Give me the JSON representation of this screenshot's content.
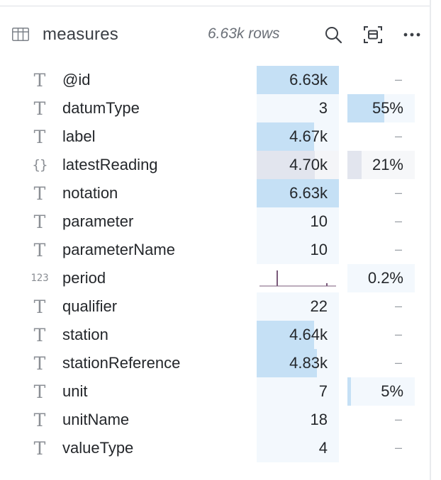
{
  "table": {
    "name": "measures",
    "row_count": "6.63k rows",
    "icons": {
      "table": "table-icon",
      "search": "search-icon",
      "focus": "expand-icon",
      "more": "more-icon"
    }
  },
  "colors": {
    "blue_fill": "#c5e0f5",
    "blue_bg": "#f3f8fd",
    "gray_fill": "#e2e5ee",
    "histogram": "#7a5a7a"
  },
  "columns": [
    {
      "name": "@id",
      "type": "T",
      "distinct": "6.63k",
      "distinct_fraction": 1.0,
      "null_pct": "",
      "null_fraction": 0
    },
    {
      "name": "datumType",
      "type": "T",
      "distinct": "3",
      "distinct_fraction": 0.0,
      "null_pct": "55%",
      "null_fraction": 0.55
    },
    {
      "name": "label",
      "type": "T",
      "distinct": "4.67k",
      "distinct_fraction": 0.7,
      "null_pct": "",
      "null_fraction": 0
    },
    {
      "name": "latestReading",
      "type": "{}",
      "distinct": "4.70k",
      "distinct_fraction": 0.71,
      "null_pct": "21%",
      "null_fraction": 0.21,
      "tone": "gray"
    },
    {
      "name": "notation",
      "type": "T",
      "distinct": "6.63k",
      "distinct_fraction": 1.0,
      "null_pct": "",
      "null_fraction": 0
    },
    {
      "name": "parameter",
      "type": "T",
      "distinct": "10",
      "distinct_fraction": 0.0,
      "null_pct": "",
      "null_fraction": 0
    },
    {
      "name": "parameterName",
      "type": "T",
      "distinct": "10",
      "distinct_fraction": 0.0,
      "null_pct": "",
      "null_fraction": 0
    },
    {
      "name": "period",
      "type": "123",
      "histogram": true,
      "null_pct": "0.2%",
      "null_fraction": 0.0
    },
    {
      "name": "qualifier",
      "type": "T",
      "distinct": "22",
      "distinct_fraction": 0.0,
      "null_pct": "",
      "null_fraction": 0
    },
    {
      "name": "station",
      "type": "T",
      "distinct": "4.64k",
      "distinct_fraction": 0.7,
      "null_pct": "",
      "null_fraction": 0
    },
    {
      "name": "stationReference",
      "type": "T",
      "distinct": "4.83k",
      "distinct_fraction": 0.73,
      "null_pct": "",
      "null_fraction": 0
    },
    {
      "name": "unit",
      "type": "T",
      "distinct": "7",
      "distinct_fraction": 0.0,
      "null_pct": "5%",
      "null_fraction": 0.05
    },
    {
      "name": "unitName",
      "type": "T",
      "distinct": "18",
      "distinct_fraction": 0.0,
      "null_pct": "",
      "null_fraction": 0
    },
    {
      "name": "valueType",
      "type": "T",
      "distinct": "4",
      "distinct_fraction": 0.0,
      "null_pct": "",
      "null_fraction": 0
    }
  ]
}
